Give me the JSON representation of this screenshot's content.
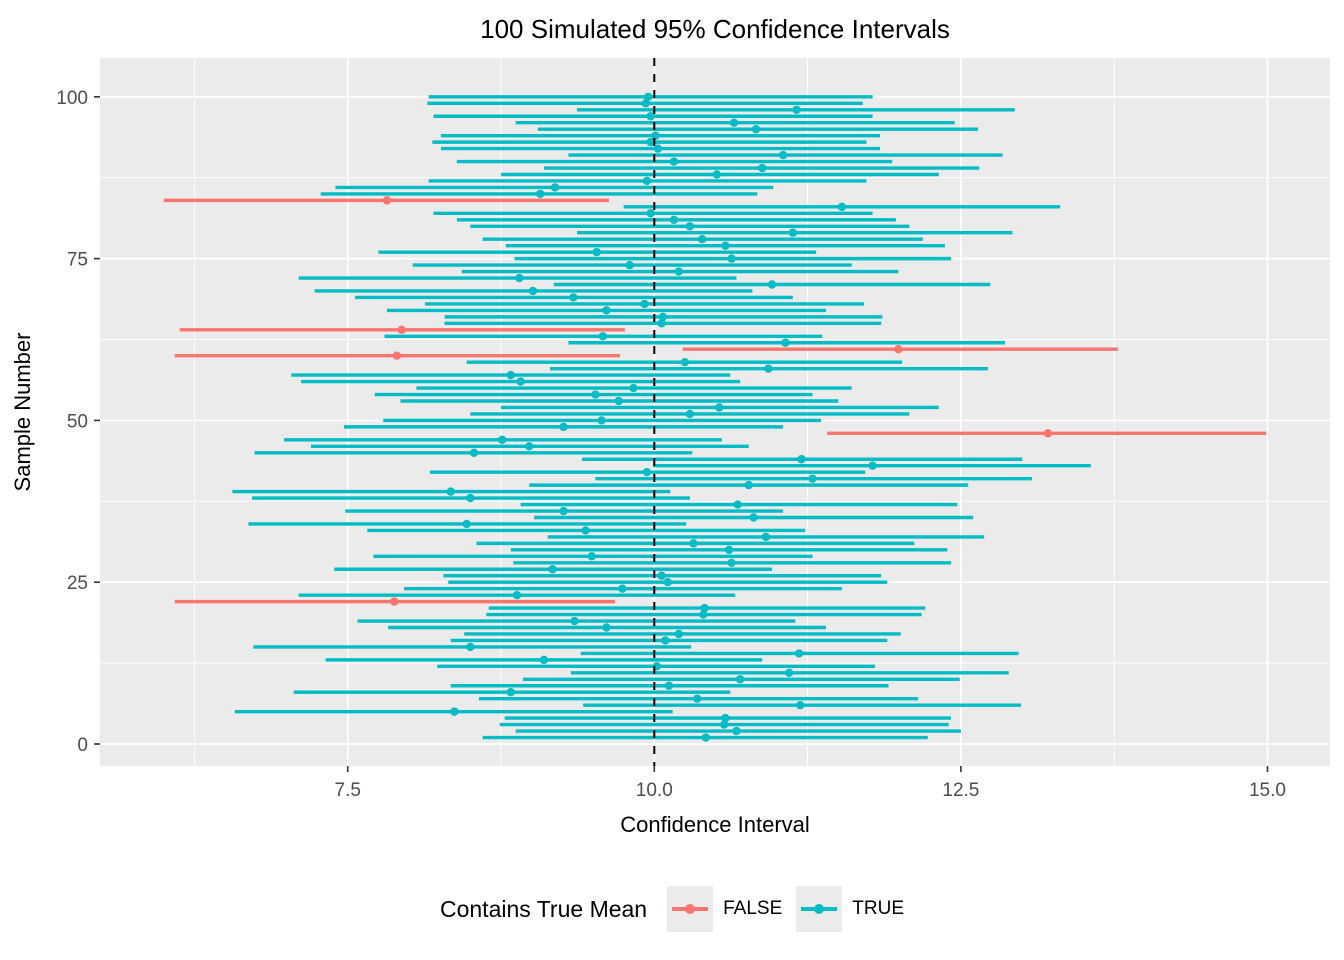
{
  "title": "100 Simulated 95% Confidence Intervals",
  "xlabel": "Confidence Interval",
  "ylabel": "Sample Number",
  "legend": {
    "title": "Contains True Mean",
    "entries": [
      {
        "label": "FALSE",
        "color": "#F8766D"
      },
      {
        "label": "TRUE",
        "color": "#00BCC4"
      }
    ]
  },
  "colors": {
    "false_interval": "#F8766D",
    "true_interval": "#00BCC4",
    "panel_bg": "#EBEBEB",
    "gridline": "#FFFFFF",
    "tick_text": "#4D4D4D",
    "tick_mark": "#333333",
    "true_mean_line": "#000000",
    "title_text": "#000000"
  },
  "chart_data": {
    "type": "line",
    "title": "100 Simulated 95% Confidence Intervals",
    "xlabel": "Confidence Interval",
    "ylabel": "Sample Number",
    "x_ticks": [
      7.5,
      10.0,
      12.5,
      15.0
    ],
    "x_tick_labels": [
      "7.5",
      "10.0",
      "12.5",
      "15.0"
    ],
    "x_minor_ticks": [
      6.25,
      8.75,
      11.25,
      13.75
    ],
    "y_ticks": [
      0,
      25,
      50,
      75,
      100
    ],
    "y_tick_labels": [
      "0",
      "25",
      "50",
      "75",
      "100"
    ],
    "y_minor_ticks": [
      12.5,
      37.5,
      62.5,
      87.5
    ],
    "xlim": [
      5.48,
      15.51
    ],
    "ylim": [
      -3.4,
      106.0
    ],
    "grid": true,
    "legend_position": "bottom",
    "true_mean": 10.0,
    "intervals_note": "each row: [sample_number, lower, center, upper, contains_true_mean]",
    "intervals": [
      [
        1,
        8.6,
        10.42,
        12.23,
        true
      ],
      [
        2,
        8.87,
        10.67,
        12.5,
        true
      ],
      [
        3,
        8.74,
        10.57,
        12.4,
        true
      ],
      [
        4,
        8.78,
        10.58,
        12.42,
        true
      ],
      [
        5,
        6.58,
        8.37,
        10.15,
        true
      ],
      [
        6,
        9.42,
        11.19,
        12.99,
        true
      ],
      [
        7,
        8.57,
        10.35,
        12.15,
        true
      ],
      [
        8,
        7.06,
        8.83,
        10.62,
        true
      ],
      [
        9,
        8.34,
        10.12,
        11.91,
        true
      ],
      [
        10,
        8.93,
        10.7,
        12.49,
        true
      ],
      [
        11,
        9.32,
        11.1,
        12.89,
        true
      ],
      [
        12,
        8.23,
        10.02,
        11.8,
        true
      ],
      [
        13,
        7.32,
        9.1,
        10.88,
        true
      ],
      [
        14,
        9.4,
        11.18,
        12.97,
        true
      ],
      [
        15,
        6.73,
        8.5,
        10.3,
        true
      ],
      [
        16,
        8.34,
        10.09,
        11.9,
        true
      ],
      [
        17,
        8.45,
        10.2,
        12.01,
        true
      ],
      [
        18,
        7.83,
        9.61,
        11.4,
        true
      ],
      [
        19,
        7.58,
        9.35,
        11.15,
        true
      ],
      [
        20,
        8.63,
        10.4,
        12.18,
        true
      ],
      [
        21,
        8.65,
        10.41,
        12.21,
        true
      ],
      [
        22,
        6.09,
        7.88,
        9.68,
        false
      ],
      [
        23,
        7.1,
        8.88,
        10.66,
        true
      ],
      [
        24,
        7.96,
        9.74,
        11.53,
        true
      ],
      [
        25,
        8.32,
        10.11,
        11.9,
        true
      ],
      [
        26,
        8.28,
        10.06,
        11.85,
        true
      ],
      [
        27,
        7.39,
        9.17,
        10.96,
        true
      ],
      [
        28,
        8.85,
        10.63,
        12.42,
        true
      ],
      [
        29,
        7.71,
        9.49,
        11.29,
        true
      ],
      [
        30,
        8.83,
        10.61,
        12.39,
        true
      ],
      [
        31,
        8.55,
        10.32,
        12.12,
        true
      ],
      [
        32,
        9.13,
        10.91,
        12.69,
        true
      ],
      [
        33,
        7.66,
        9.44,
        11.23,
        true
      ],
      [
        34,
        6.69,
        8.47,
        10.26,
        true
      ],
      [
        35,
        9.02,
        10.81,
        12.6,
        true
      ],
      [
        36,
        7.48,
        9.26,
        11.05,
        true
      ],
      [
        37,
        8.91,
        10.68,
        12.47,
        true
      ],
      [
        38,
        6.72,
        8.5,
        10.29,
        true
      ],
      [
        39,
        6.56,
        8.34,
        10.13,
        true
      ],
      [
        40,
        8.98,
        10.77,
        12.56,
        true
      ],
      [
        41,
        9.52,
        11.29,
        13.08,
        true
      ],
      [
        42,
        8.17,
        9.94,
        11.72,
        true
      ],
      [
        43,
        9.99,
        11.78,
        13.56,
        true
      ],
      [
        44,
        9.41,
        11.2,
        13.0,
        true
      ],
      [
        45,
        6.74,
        8.53,
        10.31,
        true
      ],
      [
        46,
        7.2,
        8.98,
        10.77,
        true
      ],
      [
        47,
        6.98,
        8.76,
        10.55,
        true
      ],
      [
        48,
        11.41,
        13.21,
        14.99,
        false
      ],
      [
        49,
        7.47,
        9.26,
        11.05,
        true
      ],
      [
        50,
        7.79,
        9.57,
        11.36,
        true
      ],
      [
        51,
        8.5,
        10.29,
        12.08,
        true
      ],
      [
        52,
        8.75,
        10.53,
        12.32,
        true
      ],
      [
        53,
        7.93,
        9.71,
        11.5,
        true
      ],
      [
        54,
        7.72,
        9.52,
        11.29,
        true
      ],
      [
        55,
        8.06,
        9.83,
        11.61,
        true
      ],
      [
        56,
        7.12,
        8.91,
        10.7,
        true
      ],
      [
        57,
        7.04,
        8.83,
        10.62,
        true
      ],
      [
        58,
        9.15,
        10.93,
        12.72,
        true
      ],
      [
        59,
        8.47,
        10.25,
        12.02,
        true
      ],
      [
        60,
        6.09,
        7.9,
        9.72,
        false
      ],
      [
        61,
        10.23,
        11.99,
        13.78,
        false
      ],
      [
        62,
        9.3,
        11.07,
        12.86,
        true
      ],
      [
        63,
        7.8,
        9.58,
        11.37,
        true
      ],
      [
        64,
        6.13,
        7.94,
        9.76,
        false
      ],
      [
        65,
        8.29,
        10.06,
        11.85,
        true
      ],
      [
        66,
        8.29,
        10.07,
        11.86,
        true
      ],
      [
        67,
        7.82,
        9.61,
        11.4,
        true
      ],
      [
        68,
        8.13,
        9.92,
        11.71,
        true
      ],
      [
        69,
        7.56,
        9.34,
        11.13,
        true
      ],
      [
        70,
        7.23,
        9.01,
        10.8,
        true
      ],
      [
        71,
        9.18,
        10.96,
        12.74,
        true
      ],
      [
        72,
        7.1,
        8.9,
        10.67,
        true
      ],
      [
        73,
        8.43,
        10.2,
        11.99,
        true
      ],
      [
        74,
        8.03,
        9.8,
        11.61,
        true
      ],
      [
        75,
        8.86,
        10.63,
        12.42,
        true
      ],
      [
        76,
        7.75,
        9.53,
        11.32,
        true
      ],
      [
        77,
        8.79,
        10.58,
        12.37,
        true
      ],
      [
        78,
        8.6,
        10.39,
        12.19,
        true
      ],
      [
        79,
        9.37,
        11.13,
        12.92,
        true
      ],
      [
        80,
        8.5,
        10.29,
        12.08,
        true
      ],
      [
        81,
        8.39,
        10.16,
        11.97,
        true
      ],
      [
        82,
        8.2,
        9.97,
        11.78,
        true
      ],
      [
        83,
        9.75,
        11.53,
        13.31,
        true
      ],
      [
        84,
        6.0,
        7.82,
        9.63,
        false
      ],
      [
        85,
        7.28,
        9.07,
        10.84,
        true
      ],
      [
        86,
        7.4,
        9.19,
        10.97,
        true
      ],
      [
        87,
        8.16,
        9.94,
        11.73,
        true
      ],
      [
        88,
        8.75,
        10.51,
        12.32,
        true
      ],
      [
        89,
        9.1,
        10.88,
        12.65,
        true
      ],
      [
        90,
        8.39,
        10.16,
        11.94,
        true
      ],
      [
        91,
        9.3,
        11.05,
        12.84,
        true
      ],
      [
        92,
        8.26,
        10.03,
        11.84,
        true
      ],
      [
        93,
        8.19,
        9.97,
        11.73,
        true
      ],
      [
        94,
        8.26,
        10.01,
        11.84,
        true
      ],
      [
        95,
        9.05,
        10.83,
        12.64,
        true
      ],
      [
        96,
        8.87,
        10.65,
        12.45,
        true
      ],
      [
        97,
        8.2,
        9.97,
        11.78,
        true
      ],
      [
        98,
        9.37,
        11.16,
        12.94,
        true
      ],
      [
        99,
        8.15,
        9.93,
        11.7,
        true
      ],
      [
        100,
        8.16,
        9.95,
        11.78,
        true
      ]
    ]
  }
}
